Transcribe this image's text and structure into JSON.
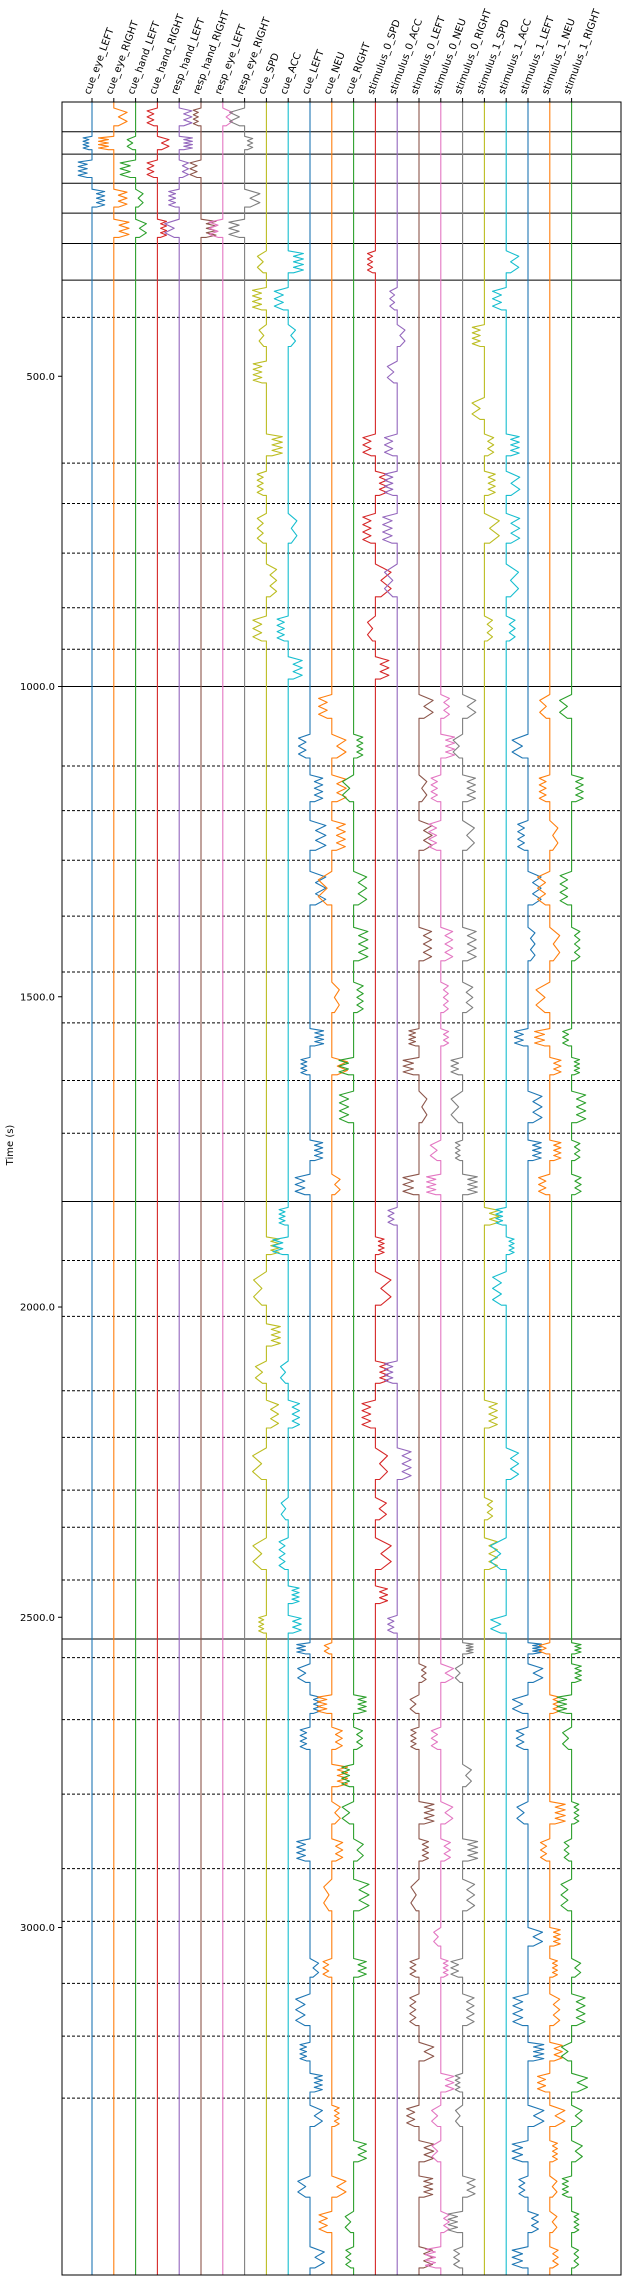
{
  "chart_data": {
    "type": "line",
    "title": "",
    "xlabel": "",
    "ylabel": "Time (s)",
    "ylim": [
      3560,
      58
    ],
    "y_ticks": [
      {
        "value": 500,
        "label": "500.0"
      },
      {
        "value": 1000,
        "label": "1000.0"
      },
      {
        "value": 1500,
        "label": "1500.0"
      },
      {
        "value": 2000,
        "label": "2000.0"
      },
      {
        "value": 2500,
        "label": "2500.0"
      },
      {
        "value": 3000,
        "label": "3000.0"
      }
    ],
    "channels": [
      {
        "name": "cue_eye_LEFT",
        "color": "#1f77b4"
      },
      {
        "name": "cue_eye_RIGHT",
        "color": "#ff7f0e"
      },
      {
        "name": "cue_hand_LEFT",
        "color": "#2ca02c"
      },
      {
        "name": "cue_hand_RIGHT",
        "color": "#d62728"
      },
      {
        "name": "resp_hand_LEFT",
        "color": "#9467bd"
      },
      {
        "name": "resp_hand_RIGHT",
        "color": "#8c564b"
      },
      {
        "name": "resp_eye_LEFT",
        "color": "#e377c2"
      },
      {
        "name": "resp_eye_RIGHT",
        "color": "#7f7f7f"
      },
      {
        "name": "cue_SPD",
        "color": "#bcbd22"
      },
      {
        "name": "cue_ACC",
        "color": "#17becf"
      },
      {
        "name": "cue_LEFT",
        "color": "#1f77b4"
      },
      {
        "name": "cue_NEU",
        "color": "#ff7f0e"
      },
      {
        "name": "cue_RIGHT",
        "color": "#2ca02c"
      },
      {
        "name": "stimulus_0_SPD",
        "color": "#d62728"
      },
      {
        "name": "stimulus_0_ACC",
        "color": "#9467bd"
      },
      {
        "name": "stimulus_0_LEFT",
        "color": "#8c564b"
      },
      {
        "name": "stimulus_0_NEU",
        "color": "#e377c2"
      },
      {
        "name": "stimulus_0_RIGHT",
        "color": "#7f7f7f"
      },
      {
        "name": "stimulus_1_SPD",
        "color": "#bcbd22"
      },
      {
        "name": "stimulus_1_ACC",
        "color": "#17becf"
      },
      {
        "name": "stimulus_1_LEFT",
        "color": "#1f77b4"
      },
      {
        "name": "stimulus_1_NEU",
        "color": "#ff7f0e"
      },
      {
        "name": "stimulus_1_RIGHT",
        "color": "#2ca02c"
      }
    ],
    "segments": [
      {
        "start": 58,
        "end": 106,
        "boundary": "solid"
      },
      {
        "start": 106,
        "end": 142,
        "boundary": "solid"
      },
      {
        "start": 142,
        "end": 189,
        "boundary": "solid"
      },
      {
        "start": 189,
        "end": 237,
        "boundary": "solid"
      },
      {
        "start": 237,
        "end": 286,
        "boundary": "solid"
      },
      {
        "start": 286,
        "end": 345,
        "boundary": "solid"
      },
      {
        "start": 345,
        "end": 405,
        "boundary": "dashed"
      },
      {
        "start": 405,
        "end": 640,
        "boundary": "dashed"
      },
      {
        "start": 640,
        "end": 705,
        "boundary": "dashed"
      },
      {
        "start": 705,
        "end": 785,
        "boundary": "dashed"
      },
      {
        "start": 785,
        "end": 873,
        "boundary": "dashed"
      },
      {
        "start": 873,
        "end": 940,
        "boundary": "dashed"
      },
      {
        "start": 940,
        "end": 1000,
        "boundary": "solid"
      },
      {
        "start": 1000,
        "end": 1128,
        "boundary": "dashed"
      },
      {
        "start": 1128,
        "end": 1200,
        "boundary": "dashed"
      },
      {
        "start": 1200,
        "end": 1280,
        "boundary": "dashed"
      },
      {
        "start": 1280,
        "end": 1370,
        "boundary": "dashed"
      },
      {
        "start": 1370,
        "end": 1460,
        "boundary": "dashed"
      },
      {
        "start": 1460,
        "end": 1542,
        "boundary": "dashed"
      },
      {
        "start": 1542,
        "end": 1635,
        "boundary": "dashed"
      },
      {
        "start": 1635,
        "end": 1720,
        "boundary": "dashed"
      },
      {
        "start": 1720,
        "end": 1830,
        "boundary": "solid"
      },
      {
        "start": 1830,
        "end": 1925,
        "boundary": "dashed"
      },
      {
        "start": 1925,
        "end": 2015,
        "boundary": "dashed"
      },
      {
        "start": 2015,
        "end": 2135,
        "boundary": "dashed"
      },
      {
        "start": 2135,
        "end": 2210,
        "boundary": "dashed"
      },
      {
        "start": 2210,
        "end": 2295,
        "boundary": "dashed"
      },
      {
        "start": 2295,
        "end": 2355,
        "boundary": "dashed"
      },
      {
        "start": 2355,
        "end": 2440,
        "boundary": "dashed"
      },
      {
        "start": 2440,
        "end": 2535,
        "boundary": "solid"
      },
      {
        "start": 2535,
        "end": 2565,
        "boundary": "dashed"
      },
      {
        "start": 2565,
        "end": 2665,
        "boundary": "dashed"
      },
      {
        "start": 2665,
        "end": 2785,
        "boundary": "dashed"
      },
      {
        "start": 2785,
        "end": 2905,
        "boundary": "dashed"
      },
      {
        "start": 2905,
        "end": 2990,
        "boundary": "dashed"
      },
      {
        "start": 2990,
        "end": 3090,
        "boundary": "dashed"
      },
      {
        "start": 3090,
        "end": 3175,
        "boundary": "dashed"
      },
      {
        "start": 3175,
        "end": 3275,
        "boundary": "dashed"
      },
      {
        "start": 3275,
        "end": 3560,
        "boundary": "none"
      }
    ],
    "activity": [
      {
        "start": 58,
        "end": 286,
        "channels": [
          0,
          1,
          2,
          3,
          4,
          5,
          6,
          7
        ]
      },
      {
        "start": 286,
        "end": 1000,
        "channels": [
          8,
          9,
          13,
          14,
          18,
          19
        ]
      },
      {
        "start": 1000,
        "end": 1830,
        "channels": [
          10,
          11,
          12,
          15,
          16,
          17,
          20,
          21,
          22
        ]
      },
      {
        "start": 1830,
        "end": 2535,
        "channels": [
          8,
          9,
          13,
          14,
          18,
          19
        ]
      },
      {
        "start": 2535,
        "end": 3560,
        "channels": [
          10,
          11,
          12,
          15,
          16,
          17,
          20,
          21,
          22
        ]
      }
    ]
  }
}
